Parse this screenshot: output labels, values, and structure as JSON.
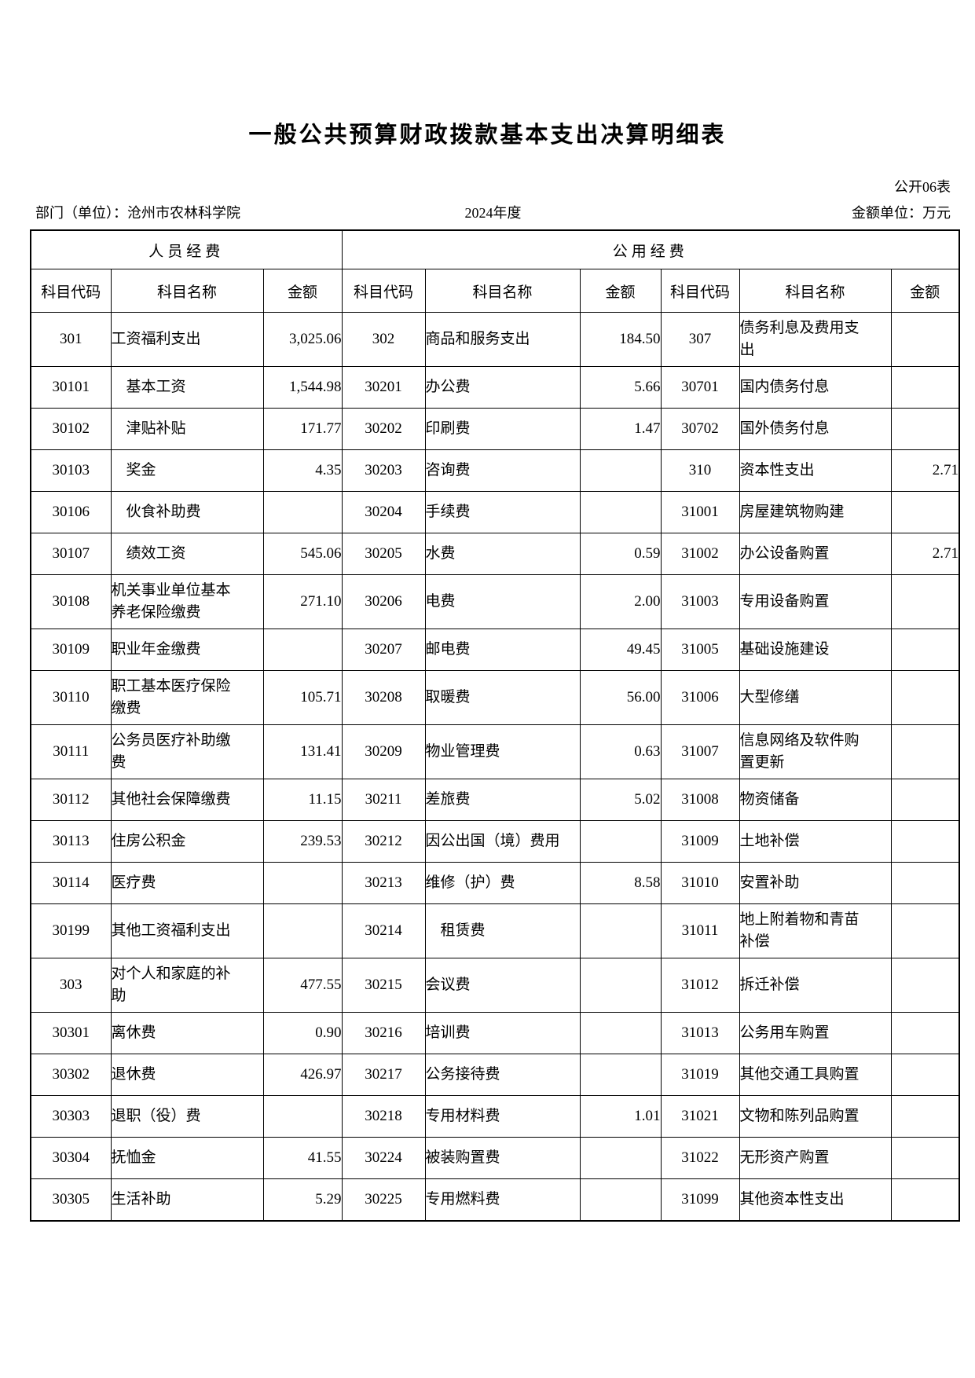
{
  "header": {
    "title": "一般公共预算财政拨款基本支出决算明细表",
    "form_number": "公开06表",
    "department": "部门（单位）：沧州市农林科学院",
    "year": "2024年度",
    "unit": "金额单位：万元"
  },
  "table": {
    "group_headers": [
      "人员经费",
      "公用经费"
    ],
    "column_headers": [
      "科目代码",
      "科目名称",
      "金额",
      "科目代码",
      "科目名称",
      "金额",
      "科目代码",
      "科目名称",
      "金额"
    ],
    "rows": [
      [
        "301",
        "工资福利支出",
        "3,025.06",
        "302",
        "商品和服务支出",
        "184.50",
        "307",
        "债务利息及费用支\n出",
        ""
      ],
      [
        "30101",
        "　基本工资",
        "1,544.98",
        "30201",
        "办公费",
        "5.66",
        "30701",
        "国内债务付息",
        ""
      ],
      [
        "30102",
        "　津贴补贴",
        "171.77",
        "30202",
        "印刷费",
        "1.47",
        "30702",
        "国外债务付息",
        ""
      ],
      [
        "30103",
        "　奖金",
        "4.35",
        "30203",
        "咨询费",
        "",
        "310",
        "资本性支出",
        "2.71"
      ],
      [
        "30106",
        "　伙食补助费",
        "",
        "30204",
        "手续费",
        "",
        "31001",
        "房屋建筑物购建",
        ""
      ],
      [
        "30107",
        "　绩效工资",
        "545.06",
        "30205",
        "水费",
        "0.59",
        "31002",
        "办公设备购置",
        "2.71"
      ],
      [
        "30108",
        "机关事业单位基本\n养老保险缴费",
        "271.10",
        "30206",
        "电费",
        "2.00",
        "31003",
        "专用设备购置",
        ""
      ],
      [
        "30109",
        "职业年金缴费",
        "",
        "30207",
        "邮电费",
        "49.45",
        "31005",
        "基础设施建设",
        ""
      ],
      [
        "30110",
        "职工基本医疗保险\n缴费",
        "105.71",
        "30208",
        "取暖费",
        "56.00",
        "31006",
        "大型修缮",
        ""
      ],
      [
        "30111",
        "公务员医疗补助缴\n费",
        "131.41",
        "30209",
        "物业管理费",
        "0.63",
        "31007",
        "信息网络及软件购\n置更新",
        ""
      ],
      [
        "30112",
        "其他社会保障缴费",
        "11.15",
        "30211",
        "差旅费",
        "5.02",
        "31008",
        "物资储备",
        ""
      ],
      [
        "30113",
        "住房公积金",
        "239.53",
        "30212",
        "因公出国（境）费用",
        "",
        "31009",
        "土地补偿",
        ""
      ],
      [
        "30114",
        "医疗费",
        "",
        "30213",
        "维修（护）费",
        "8.58",
        "31010",
        "安置补助",
        ""
      ],
      [
        "30199",
        "其他工资福利支出",
        "",
        "30214",
        "　租赁费",
        "",
        "31011",
        "地上附着物和青苗\n补偿",
        ""
      ],
      [
        "303",
        "对个人和家庭的补\n助",
        "477.55",
        "30215",
        "会议费",
        "",
        "31012",
        "拆迁补偿",
        ""
      ],
      [
        "30301",
        "离休费",
        "0.90",
        "30216",
        "培训费",
        "",
        "31013",
        "公务用车购置",
        ""
      ],
      [
        "30302",
        "退休费",
        "426.97",
        "30217",
        "公务接待费",
        "",
        "31019",
        "其他交通工具购置",
        ""
      ],
      [
        "30303",
        "退职（役）费",
        "",
        "30218",
        "专用材料费",
        "1.01",
        "31021",
        "文物和陈列品购置",
        ""
      ],
      [
        "30304",
        "抚恤金",
        "41.55",
        "30224",
        "被装购置费",
        "",
        "31022",
        "无形资产购置",
        ""
      ],
      [
        "30305",
        "生活补助",
        "5.29",
        "30225",
        "专用燃料费",
        "",
        "31099",
        "其他资本性支出",
        ""
      ]
    ]
  }
}
